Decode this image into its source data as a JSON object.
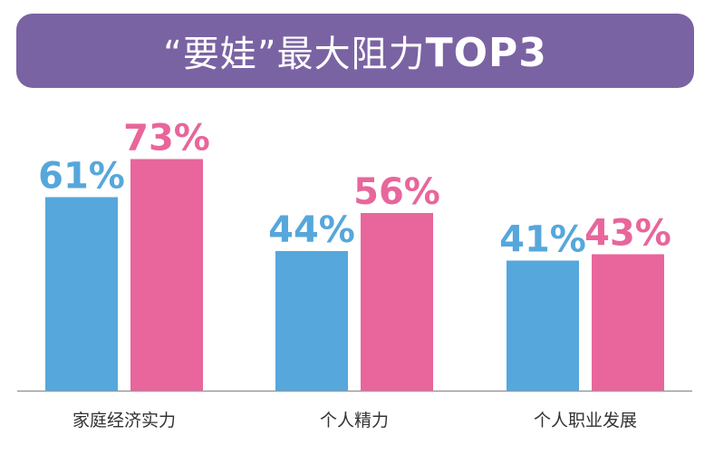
{
  "title": {
    "prefix": "“要娃”最大阻力",
    "emphasis": "TOP3"
  },
  "colors": {
    "banner": "#7a63a3",
    "series_blue": "#56a7dc",
    "series_pink": "#e8669b",
    "axis": "#9a9a9a"
  },
  "chart_data": {
    "type": "bar",
    "categories": [
      "家庭经济实力",
      "个人精力",
      "个人职业发展"
    ],
    "series": [
      {
        "values": [
          61,
          44,
          41
        ],
        "color": "#56a7dc"
      },
      {
        "values": [
          73,
          56,
          43
        ],
        "color": "#e8669b"
      }
    ],
    "value_suffix": "%",
    "ylim": [
      0,
      100
    ],
    "grid": false,
    "legend": "none"
  }
}
